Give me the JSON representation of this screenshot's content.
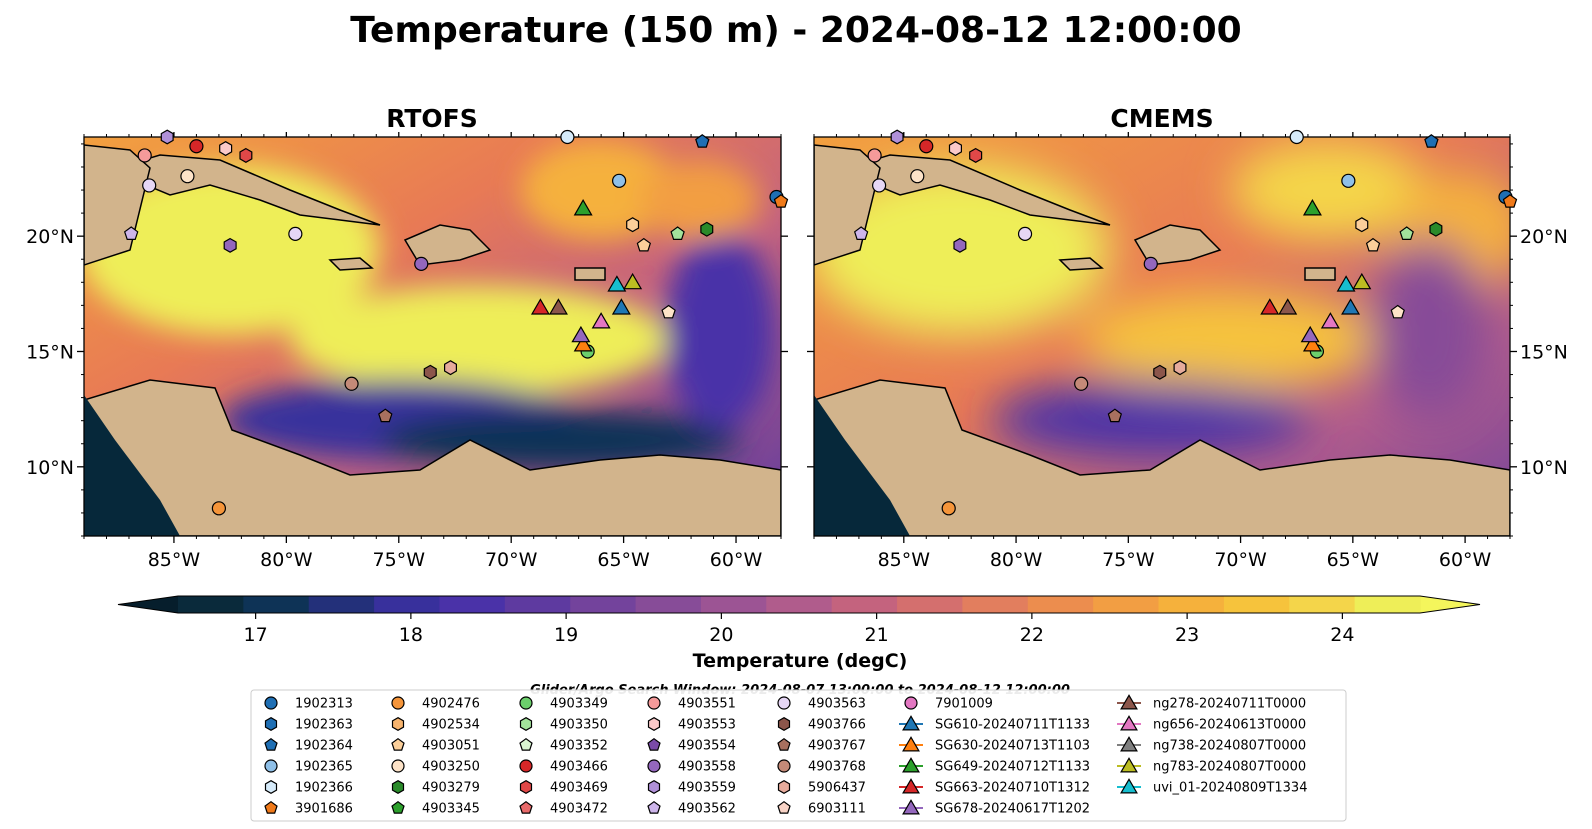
{
  "title": "Temperature (150 m) - 2024-08-12 12:00:00",
  "panels": [
    {
      "id": "rtofs",
      "title": "RTOFS"
    },
    {
      "id": "cmems",
      "title": "CMEMS"
    }
  ],
  "map": {
    "lon_range": [
      -89.0,
      -58.0
    ],
    "lat_range": [
      7.0,
      24.3
    ],
    "lon_ticks": [
      {
        "value": -85,
        "label": "85°W"
      },
      {
        "value": -80,
        "label": "80°W"
      },
      {
        "value": -75,
        "label": "75°W"
      },
      {
        "value": -70,
        "label": "70°W"
      },
      {
        "value": -65,
        "label": "65°W"
      },
      {
        "value": -60,
        "label": "60°W"
      }
    ],
    "lat_ticks": [
      {
        "value": 20,
        "label": "20°N"
      },
      {
        "value": 15,
        "label": "15°N"
      },
      {
        "value": 10,
        "label": "10°N"
      }
    ],
    "colors": {
      "land": "#d2b48c",
      "shelf": "#9ab9e2",
      "deep_cold": "#06283a"
    }
  },
  "colorbar": {
    "label": "Temperature (degC)",
    "min": 16.5,
    "max": 24.5,
    "ticks": [
      17,
      18,
      19,
      20,
      21,
      22,
      23,
      24
    ],
    "colors": [
      "#0a2a3b",
      "#0e3356",
      "#23307a",
      "#38309c",
      "#4a32a8",
      "#5e3aa0",
      "#73439c",
      "#874c98",
      "#9c5494",
      "#b05c8c",
      "#c4637e",
      "#d46f6e",
      "#e27e5e",
      "#ec8d4e",
      "#f29e43",
      "#f5b13c",
      "#f6c33c",
      "#f4d54a",
      "#eeee58"
    ]
  },
  "search_window": "Glider/Argo Search Window: 2024-08-07 13:00:00 to 2024-08-12 12:00:00",
  "legend": {
    "columns": [
      [
        {
          "label": "1902313",
          "shape": "circle",
          "color": "#1f6fb4"
        },
        {
          "label": "1902363",
          "shape": "hexagon",
          "color": "#1f6fb4"
        },
        {
          "label": "1902364",
          "shape": "pentagon",
          "color": "#1f6fb4"
        },
        {
          "label": "1902365",
          "shape": "circle",
          "color": "#8fc0e8"
        },
        {
          "label": "1902366",
          "shape": "hexagon",
          "color": "#d6ebfa"
        },
        {
          "label": "3901686",
          "shape": "pentagon",
          "color": "#f07a1a"
        }
      ],
      [
        {
          "label": "4902476",
          "shape": "circle",
          "color": "#f5953a"
        },
        {
          "label": "4902534",
          "shape": "hexagon",
          "color": "#f7b46e"
        },
        {
          "label": "4903051",
          "shape": "pentagon",
          "color": "#fbcf9a"
        },
        {
          "label": "4903250",
          "shape": "circle",
          "color": "#fde3c8"
        },
        {
          "label": "4903279",
          "shape": "hexagon",
          "color": "#2a8a2a"
        },
        {
          "label": "4903345",
          "shape": "pentagon",
          "color": "#2ca02c"
        }
      ],
      [
        {
          "label": "4903349",
          "shape": "circle",
          "color": "#6ccf6c"
        },
        {
          "label": "4903350",
          "shape": "hexagon",
          "color": "#a3e39b"
        },
        {
          "label": "4903352",
          "shape": "pentagon",
          "color": "#d9f5d0"
        },
        {
          "label": "4903466",
          "shape": "circle",
          "color": "#d62728"
        },
        {
          "label": "4903469",
          "shape": "hexagon",
          "color": "#e04848"
        },
        {
          "label": "4903472",
          "shape": "pentagon",
          "color": "#e86a6a"
        }
      ],
      [
        {
          "label": "4903551",
          "shape": "circle",
          "color": "#f59a9a"
        },
        {
          "label": "4903553",
          "shape": "hexagon",
          "color": "#fbc9c9"
        },
        {
          "label": "4903554",
          "shape": "pentagon",
          "color": "#7a4aa8"
        },
        {
          "label": "4903558",
          "shape": "circle",
          "color": "#9467bd"
        },
        {
          "label": "4903559",
          "shape": "hexagon",
          "color": "#b090d8"
        },
        {
          "label": "4903562",
          "shape": "pentagon",
          "color": "#cdb5ea"
        }
      ],
      [
        {
          "label": "4903563",
          "shape": "circle",
          "color": "#e6d6f5"
        },
        {
          "label": "4903766",
          "shape": "hexagon",
          "color": "#8c564b"
        },
        {
          "label": "4903767",
          "shape": "pentagon",
          "color": "#a8705f"
        },
        {
          "label": "4903768",
          "shape": "circle",
          "color": "#c48a78"
        },
        {
          "label": "5906437",
          "shape": "hexagon",
          "color": "#e6ab9c"
        },
        {
          "label": "6903111",
          "shape": "pentagon",
          "color": "#f8d3c6"
        }
      ],
      [
        {
          "label": "7901009",
          "shape": "circle",
          "color": "#e377c2"
        },
        {
          "label": "SG610-20240711T1133",
          "shape": "triangle-line",
          "color": "#1f77b4"
        },
        {
          "label": "SG630-20240713T1103",
          "shape": "triangle-line",
          "color": "#ff7f0e"
        },
        {
          "label": "SG649-20240712T1133",
          "shape": "triangle-line",
          "color": "#2ca02c"
        },
        {
          "label": "SG663-20240710T1312",
          "shape": "triangle-line",
          "color": "#d62728"
        },
        {
          "label": "SG678-20240617T1202",
          "shape": "triangle-line",
          "color": "#9467bd"
        }
      ],
      [
        {
          "label": "ng278-20240711T0000",
          "shape": "triangle-line",
          "color": "#8c564b"
        },
        {
          "label": "ng656-20240613T0000",
          "shape": "triangle-line",
          "color": "#e377c2"
        },
        {
          "label": "ng738-20240807T0000",
          "shape": "triangle-line",
          "color": "#7f7f7f"
        },
        {
          "label": "ng783-20240807T0000",
          "shape": "triangle-line",
          "color": "#bcbd22"
        },
        {
          "label": "uvi_01-20240809T1334",
          "shape": "triangle-line",
          "color": "#17becf"
        }
      ]
    ]
  },
  "floats": [
    {
      "lon": -86.3,
      "lat": 23.5,
      "shape": "circle",
      "color": "#f59a9a"
    },
    {
      "lon": -86.1,
      "lat": 22.2,
      "shape": "circle",
      "color": "#e6d6f5"
    },
    {
      "lon": -84.4,
      "lat": 22.6,
      "shape": "circle",
      "color": "#fde3c8"
    },
    {
      "lon": -84.0,
      "lat": 23.9,
      "shape": "circle",
      "color": "#d62728"
    },
    {
      "lon": -82.7,
      "lat": 23.8,
      "shape": "hexagon",
      "color": "#fbc9c9"
    },
    {
      "lon": -81.8,
      "lat": 23.5,
      "shape": "hexagon",
      "color": "#e04848"
    },
    {
      "lon": -85.3,
      "lat": 24.3,
      "shape": "hexagon",
      "color": "#b090d8"
    },
    {
      "lon": -86.9,
      "lat": 20.1,
      "shape": "pentagon",
      "color": "#cdb5ea"
    },
    {
      "lon": -82.5,
      "lat": 19.6,
      "shape": "hexagon",
      "color": "#9467bd"
    },
    {
      "lon": -79.6,
      "lat": 20.1,
      "shape": "circle",
      "color": "#e6d6f5"
    },
    {
      "lon": -74.0,
      "lat": 18.8,
      "shape": "circle",
      "color": "#9467bd"
    },
    {
      "lon": -73.6,
      "lat": 14.1,
      "shape": "hexagon",
      "color": "#8c564b"
    },
    {
      "lon": -72.7,
      "lat": 14.3,
      "shape": "hexagon",
      "color": "#e6ab9c"
    },
    {
      "lon": -77.1,
      "lat": 13.6,
      "shape": "circle",
      "color": "#c48a78"
    },
    {
      "lon": -75.6,
      "lat": 12.2,
      "shape": "pentagon",
      "color": "#a8705f"
    },
    {
      "lon": -83.0,
      "lat": 8.2,
      "shape": "circle",
      "color": "#f5953a"
    },
    {
      "lon": -65.2,
      "lat": 22.4,
      "shape": "circle",
      "color": "#8fc0e8"
    },
    {
      "lon": -64.6,
      "lat": 20.5,
      "shape": "hexagon",
      "color": "#fbcf9a"
    },
    {
      "lon": -64.1,
      "lat": 19.6,
      "shape": "pentagon",
      "color": "#fbcf9a"
    },
    {
      "lon": -62.6,
      "lat": 20.1,
      "shape": "pentagon",
      "color": "#a3e39b"
    },
    {
      "lon": -61.3,
      "lat": 20.3,
      "shape": "hexagon",
      "color": "#2a8a2a"
    },
    {
      "lon": -63.0,
      "lat": 16.7,
      "shape": "pentagon",
      "color": "#fde3c8"
    },
    {
      "lon": -66.6,
      "lat": 15.0,
      "shape": "circle",
      "color": "#6ccf6c"
    },
    {
      "lon": -58.2,
      "lat": 21.7,
      "shape": "circle",
      "color": "#1f6fb4"
    },
    {
      "lon": -58.0,
      "lat": 21.5,
      "shape": "pentagon",
      "color": "#f07a1a"
    },
    {
      "lon": -61.5,
      "lat": 24.1,
      "shape": "pentagon",
      "color": "#1f6fb4"
    },
    {
      "lon": -67.5,
      "lat": 24.3,
      "shape": "circle",
      "color": "#d6ebfa"
    }
  ],
  "gliders": [
    {
      "lon": -66.8,
      "lat": 21.2,
      "color": "#2ca02c"
    },
    {
      "lon": -68.7,
      "lat": 16.9,
      "color": "#d62728"
    },
    {
      "lon": -67.9,
      "lat": 16.9,
      "color": "#8c564b"
    },
    {
      "lon": -66.8,
      "lat": 15.3,
      "color": "#ff7f0e"
    },
    {
      "lon": -66.9,
      "lat": 15.7,
      "color": "#9467bd"
    },
    {
      "lon": -66.0,
      "lat": 16.3,
      "color": "#e377c2"
    },
    {
      "lon": -65.1,
      "lat": 16.9,
      "color": "#1f77b4"
    },
    {
      "lon": -65.3,
      "lat": 17.9,
      "color": "#17becf"
    },
    {
      "lon": -64.6,
      "lat": 18.0,
      "color": "#bcbd22"
    }
  ]
}
